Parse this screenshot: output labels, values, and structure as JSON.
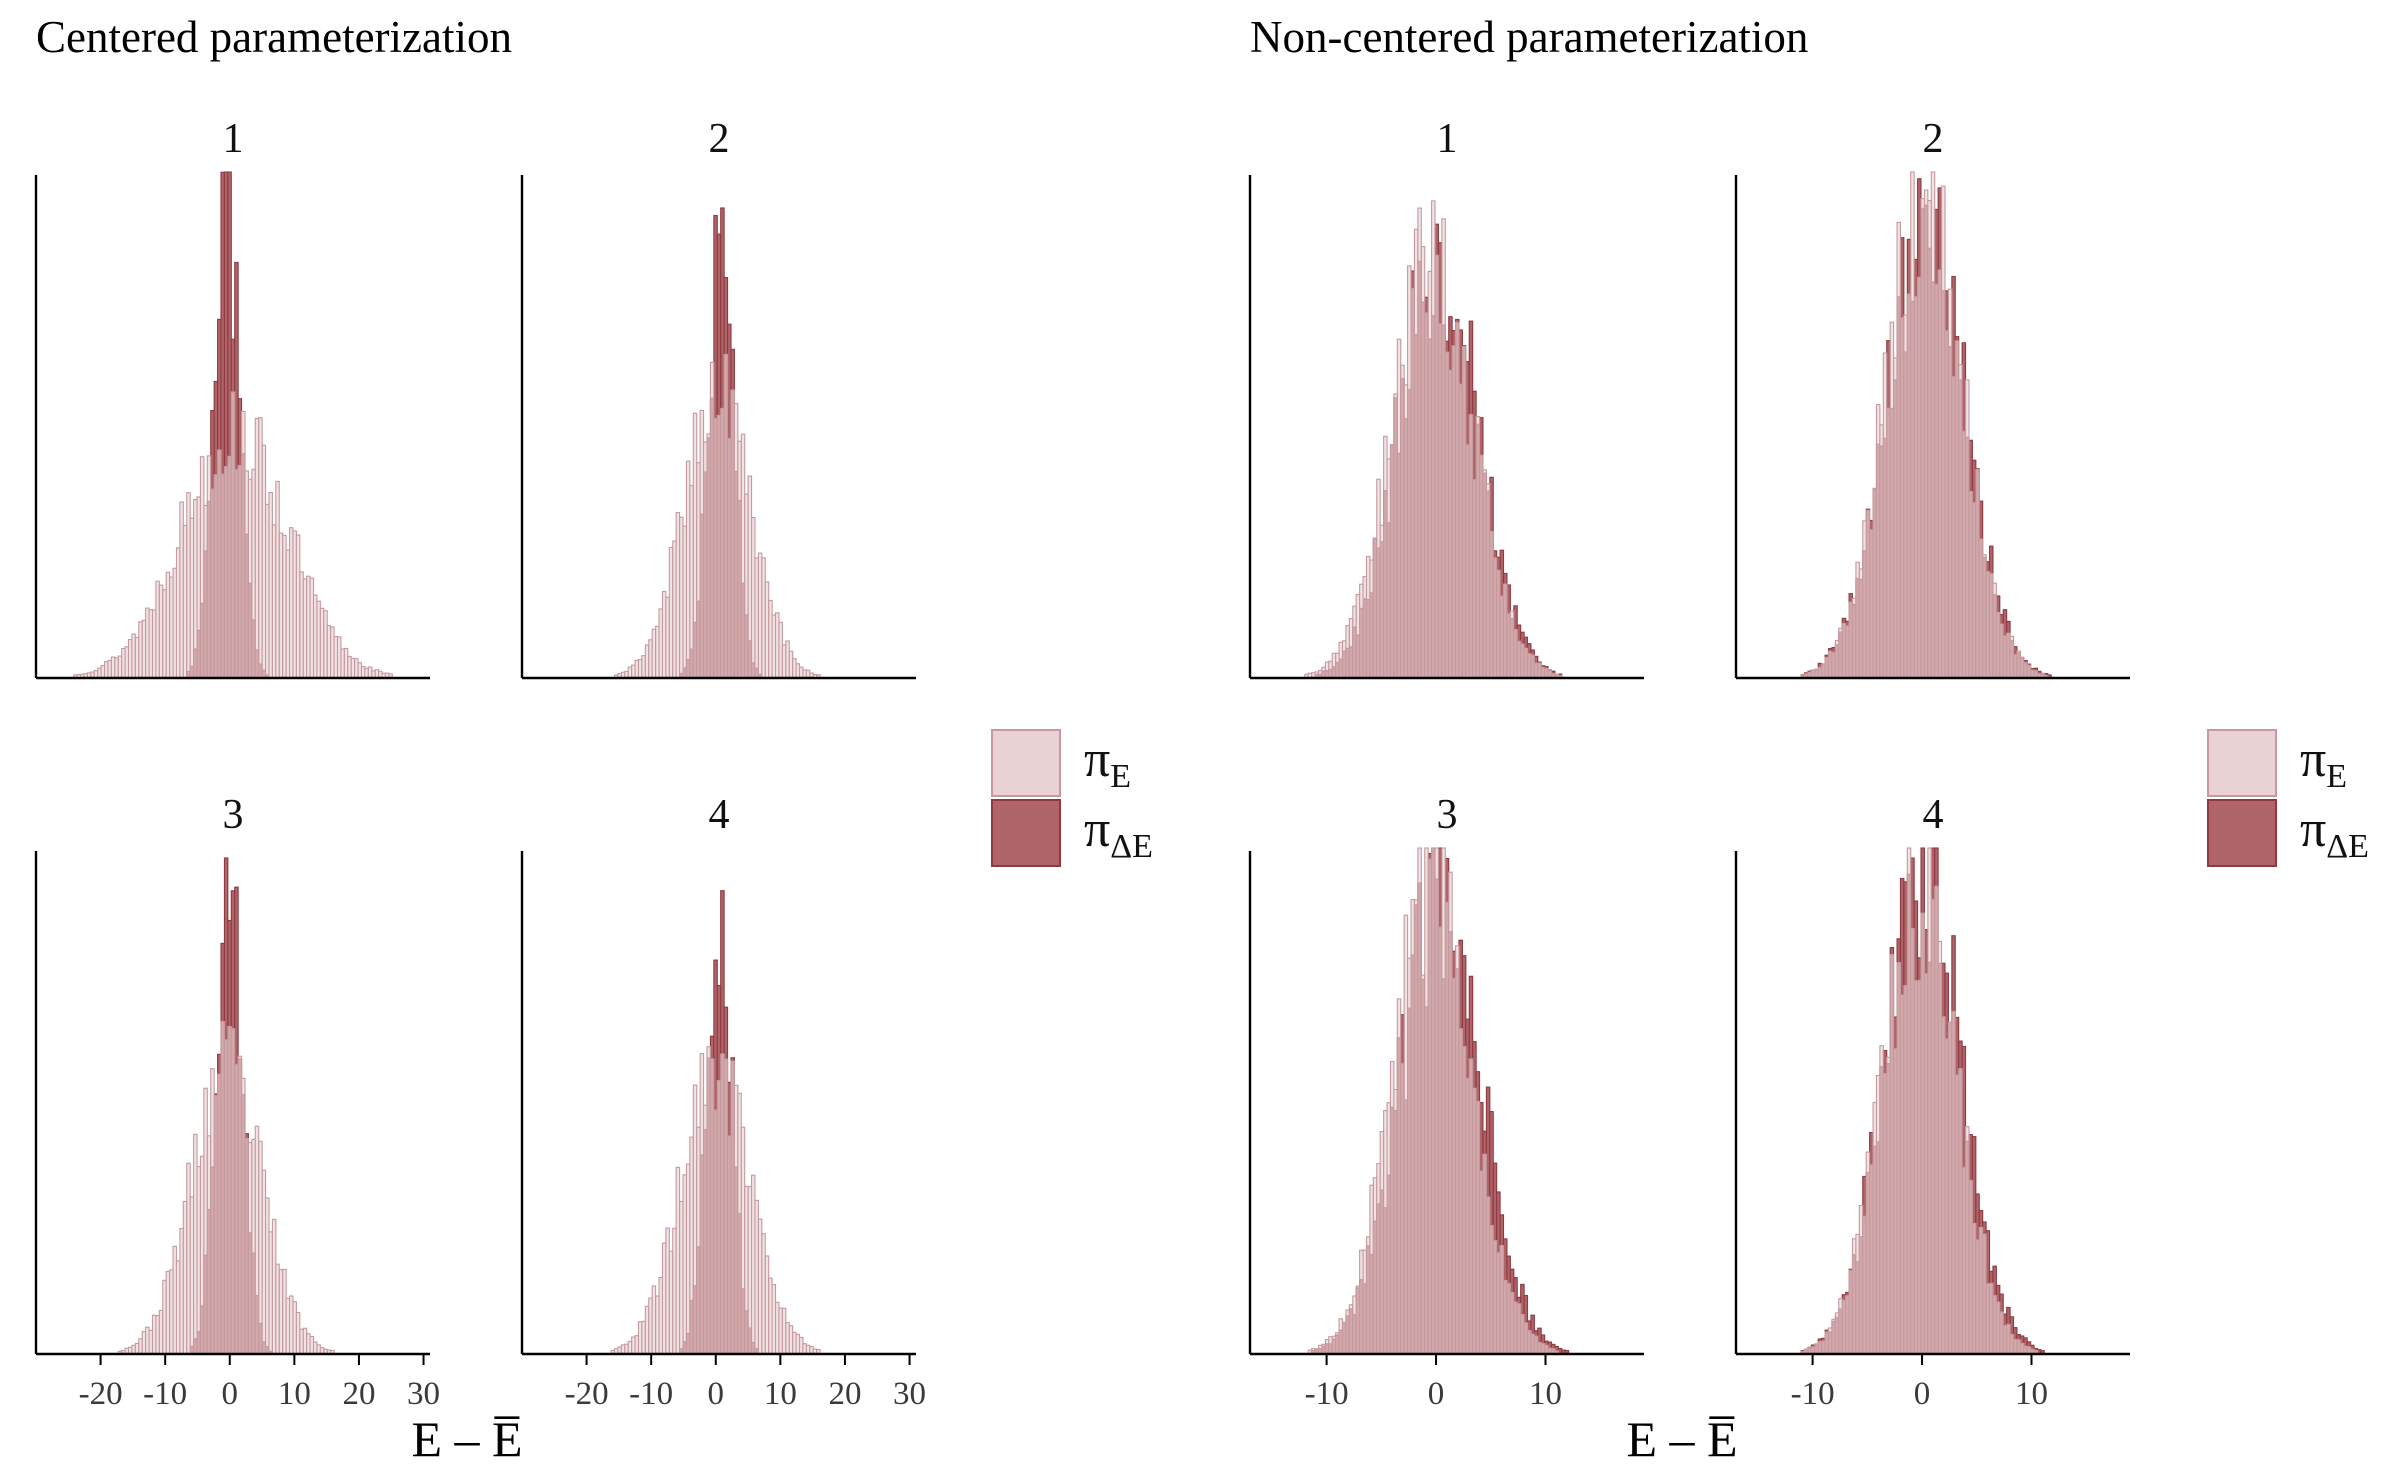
{
  "colors": {
    "pi_E": "#e8d2d4",
    "pi_E_stroke": "#c49a9f",
    "pi_dE": "#ae6468",
    "pi_dE_stroke": "#8e3a40",
    "axis": "#000000",
    "tick_text": "#3a3a3a"
  },
  "legend": {
    "items": [
      {
        "key": "pi_E",
        "symbol": "π",
        "subscript": "E"
      },
      {
        "key": "pi_dE",
        "symbol": "π",
        "subscript": "ΔE"
      }
    ]
  },
  "chart_data": [
    {
      "type": "bar",
      "group": "Centered parameterization",
      "title": "Centered parameterization",
      "xlabel": "E – E̅",
      "xlim": [
        -30,
        31
      ],
      "xticks": [
        -20,
        -10,
        0,
        10,
        20,
        30
      ],
      "xtick_labels": [
        "-20",
        "-10",
        "0",
        "10",
        "20",
        "30"
      ],
      "panels": [
        {
          "label": "1",
          "y_axis": "unlabeled",
          "series": [
            {
              "name": "π_E",
              "values": [
                {
                  "x": 0.7,
                  "sigma": 8.3,
                  "peak": 0.5
                }
              ]
            },
            {
              "name": "π_ΔE",
              "values": [
                {
                  "x": -0.5,
                  "sigma": 2.0,
                  "peak": 0.97
                }
              ]
            }
          ]
        },
        {
          "label": "2",
          "y_axis": "unlabeled",
          "series": [
            {
              "name": "π_E",
              "values": [
                {
                  "x": 0.2,
                  "sigma": 5.2,
                  "peak": 0.58
                }
              ]
            },
            {
              "name": "π_ΔE",
              "values": [
                {
                  "x": 0.8,
                  "sigma": 2.0,
                  "peak": 0.87
                }
              ]
            }
          ]
        },
        {
          "label": "3",
          "y_axis": "unlabeled",
          "series": [
            {
              "name": "π_E",
              "values": [
                {
                  "x": -0.5,
                  "sigma": 5.5,
                  "peak": 0.58
                }
              ]
            },
            {
              "name": "π_ΔE",
              "values": [
                {
                  "x": 0.0,
                  "sigma": 2.0,
                  "peak": 0.97
                }
              ]
            }
          ]
        },
        {
          "label": "4",
          "y_axis": "unlabeled",
          "series": [
            {
              "name": "π_E",
              "values": [
                {
                  "x": 0.0,
                  "sigma": 5.4,
                  "peak": 0.58
                }
              ]
            },
            {
              "name": "π_ΔE",
              "values": [
                {
                  "x": 0.5,
                  "sigma": 2.0,
                  "peak": 0.9
                }
              ]
            }
          ]
        }
      ]
    },
    {
      "type": "bar",
      "group": "Non-centered parameterization",
      "title": "Non-centered parameterization",
      "xlabel": "E – E̅",
      "xlim": [
        -17,
        19
      ],
      "xticks": [
        -10,
        0,
        10
      ],
      "xtick_labels": [
        "-10",
        "0",
        "10"
      ],
      "panels": [
        {
          "label": "1",
          "y_axis": "unlabeled",
          "series": [
            {
              "name": "π_E",
              "values": [
                {
                  "x": -0.3,
                  "sigma": 3.7,
                  "peak": 0.85
                }
              ]
            },
            {
              "name": "π_ΔE",
              "values": [
                {
                  "x": 0.2,
                  "sigma": 3.6,
                  "peak": 0.86
                }
              ]
            }
          ]
        },
        {
          "label": "2",
          "y_axis": "unlabeled",
          "series": [
            {
              "name": "π_E",
              "values": [
                {
                  "x": 0.2,
                  "sigma": 3.5,
                  "peak": 0.97
                }
              ]
            },
            {
              "name": "π_ΔE",
              "values": [
                {
                  "x": 0.3,
                  "sigma": 3.6,
                  "peak": 0.93
                }
              ]
            }
          ]
        },
        {
          "label": "3",
          "y_axis": "unlabeled",
          "series": [
            {
              "name": "π_E",
              "values": [
                {
                  "x": -0.3,
                  "sigma": 3.6,
                  "peak": 0.97
                }
              ]
            },
            {
              "name": "π_ΔE",
              "values": [
                {
                  "x": 0.4,
                  "sigma": 3.7,
                  "peak": 0.92
                }
              ]
            }
          ]
        },
        {
          "label": "4",
          "y_axis": "unlabeled",
          "series": [
            {
              "name": "π_E",
              "values": [
                {
                  "x": -0.2,
                  "sigma": 3.4,
                  "peak": 0.94
                }
              ]
            },
            {
              "name": "π_ΔE",
              "values": [
                {
                  "x": 0.1,
                  "sigma": 3.5,
                  "peak": 0.98
                }
              ]
            }
          ]
        }
      ]
    }
  ]
}
